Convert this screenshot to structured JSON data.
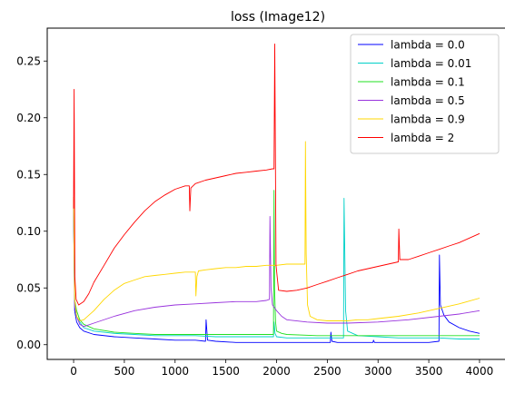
{
  "chart_data": {
    "type": "line",
    "title": "loss (Image12)",
    "xlabel": "",
    "ylabel": "",
    "xlim": [
      -260,
      4260
    ],
    "ylim": [
      -0.013,
      0.279
    ],
    "x_ticks": [
      0,
      500,
      1000,
      1500,
      2000,
      2500,
      3000,
      3500,
      4000
    ],
    "x_tick_labels": [
      "0",
      "500",
      "1000",
      "1500",
      "2000",
      "2500",
      "3000",
      "3500",
      "4000"
    ],
    "y_ticks": [
      0.0,
      0.05,
      0.1,
      0.15,
      0.2,
      0.25
    ],
    "y_tick_labels": [
      "0.00",
      "0.05",
      "0.10",
      "0.15",
      "0.20",
      "0.25"
    ],
    "grid": false,
    "legend_position": "top-right",
    "series": [
      {
        "name": "lambda = 0.0",
        "color": "#0000ff",
        "x": [
          0,
          10,
          30,
          60,
          100,
          200,
          400,
          600,
          800,
          1000,
          1200,
          1300,
          1305,
          1320,
          1400,
          1600,
          1800,
          2000,
          2200,
          2400,
          2530,
          2535,
          2545,
          2600,
          2800,
          2950,
          2955,
          2965,
          3100,
          3300,
          3500,
          3600,
          3605,
          3615,
          3650,
          3700,
          3800,
          3900,
          4000
        ],
        "values": [
          0.12,
          0.03,
          0.02,
          0.015,
          0.012,
          0.009,
          0.007,
          0.006,
          0.005,
          0.004,
          0.004,
          0.003,
          0.022,
          0.004,
          0.003,
          0.002,
          0.002,
          0.002,
          0.002,
          0.002,
          0.002,
          0.011,
          0.003,
          0.002,
          0.002,
          0.002,
          0.004,
          0.002,
          0.002,
          0.002,
          0.002,
          0.003,
          0.079,
          0.035,
          0.026,
          0.02,
          0.015,
          0.012,
          0.01
        ]
      },
      {
        "name": "lambda = 0.01",
        "color": "#00d0c8",
        "x": [
          0,
          10,
          30,
          60,
          100,
          200,
          400,
          600,
          800,
          1000,
          1200,
          1400,
          1600,
          1800,
          1950,
          1970,
          1975,
          1985,
          2000,
          2100,
          2200,
          2400,
          2600,
          2660,
          2665,
          2680,
          2700,
          2800,
          3000,
          3200,
          3400,
          3600,
          3800,
          4000
        ],
        "values": [
          0.12,
          0.035,
          0.025,
          0.02,
          0.015,
          0.012,
          0.01,
          0.009,
          0.008,
          0.008,
          0.008,
          0.007,
          0.007,
          0.007,
          0.007,
          0.007,
          0.02,
          0.01,
          0.007,
          0.006,
          0.006,
          0.006,
          0.006,
          0.006,
          0.129,
          0.03,
          0.012,
          0.008,
          0.007,
          0.006,
          0.006,
          0.006,
          0.005,
          0.005
        ]
      },
      {
        "name": "lambda = 0.1",
        "color": "#22e022",
        "x": [
          0,
          10,
          30,
          60,
          100,
          200,
          400,
          600,
          800,
          1000,
          1200,
          1400,
          1600,
          1800,
          1970,
          1975,
          1980,
          1990,
          2000,
          2050,
          2100,
          2400,
          2800,
          3200,
          3600,
          4000
        ],
        "values": [
          0.13,
          0.04,
          0.03,
          0.022,
          0.018,
          0.014,
          0.011,
          0.01,
          0.009,
          0.009,
          0.009,
          0.009,
          0.009,
          0.009,
          0.009,
          0.136,
          0.05,
          0.02,
          0.012,
          0.01,
          0.009,
          0.008,
          0.008,
          0.008,
          0.008,
          0.008
        ]
      },
      {
        "name": "lambda = 0.5",
        "color": "#9933dd",
        "x": [
          0,
          10,
          30,
          60,
          100,
          200,
          400,
          600,
          800,
          1000,
          1200,
          1400,
          1600,
          1800,
          1900,
          1930,
          1935,
          1945,
          1960,
          2000,
          2050,
          2100,
          2300,
          2500,
          2700,
          3000,
          3300,
          3600,
          3800,
          4000
        ],
        "values": [
          0.12,
          0.035,
          0.025,
          0.018,
          0.016,
          0.019,
          0.025,
          0.03,
          0.033,
          0.035,
          0.036,
          0.037,
          0.038,
          0.038,
          0.039,
          0.04,
          0.113,
          0.05,
          0.035,
          0.03,
          0.025,
          0.022,
          0.02,
          0.019,
          0.019,
          0.02,
          0.022,
          0.025,
          0.027,
          0.03
        ]
      },
      {
        "name": "lambda = 0.9",
        "color": "#ffd700",
        "x": [
          0,
          10,
          30,
          60,
          100,
          200,
          300,
          400,
          500,
          600,
          700,
          800,
          900,
          1000,
          1100,
          1200,
          1205,
          1215,
          1230,
          1300,
          1400,
          1500,
          1600,
          1700,
          1800,
          1900,
          2000,
          2100,
          2200,
          2280,
          2285,
          2292,
          2305,
          2330,
          2400,
          2500,
          2600,
          2700,
          2800,
          2900,
          3000,
          3200,
          3400,
          3600,
          3800,
          4000
        ],
        "values": [
          0.13,
          0.04,
          0.025,
          0.021,
          0.022,
          0.03,
          0.04,
          0.048,
          0.054,
          0.057,
          0.06,
          0.061,
          0.062,
          0.063,
          0.064,
          0.064,
          0.043,
          0.06,
          0.065,
          0.066,
          0.067,
          0.068,
          0.068,
          0.069,
          0.069,
          0.07,
          0.07,
          0.071,
          0.071,
          0.071,
          0.179,
          0.08,
          0.035,
          0.025,
          0.022,
          0.021,
          0.021,
          0.021,
          0.022,
          0.022,
          0.023,
          0.025,
          0.028,
          0.032,
          0.036,
          0.041
        ]
      },
      {
        "name": "lambda = 2",
        "color": "#ff0000",
        "x": [
          0,
          5,
          12,
          25,
          50,
          100,
          150,
          200,
          300,
          400,
          500,
          600,
          700,
          800,
          900,
          1000,
          1100,
          1140,
          1145,
          1155,
          1200,
          1300,
          1400,
          1500,
          1600,
          1700,
          1800,
          1900,
          1960,
          1975,
          1982,
          1995,
          2020,
          2100,
          2200,
          2300,
          2400,
          2500,
          2600,
          2700,
          2800,
          2900,
          3000,
          3100,
          3200,
          3205,
          3215,
          3300,
          3400,
          3500,
          3600,
          3700,
          3800,
          3900,
          4000
        ],
        "values": [
          0.12,
          0.225,
          0.06,
          0.04,
          0.035,
          0.038,
          0.045,
          0.055,
          0.07,
          0.085,
          0.097,
          0.108,
          0.118,
          0.126,
          0.132,
          0.137,
          0.14,
          0.14,
          0.118,
          0.138,
          0.142,
          0.145,
          0.147,
          0.149,
          0.151,
          0.152,
          0.153,
          0.154,
          0.155,
          0.155,
          0.265,
          0.07,
          0.048,
          0.047,
          0.048,
          0.05,
          0.053,
          0.056,
          0.059,
          0.062,
          0.065,
          0.067,
          0.069,
          0.071,
          0.073,
          0.102,
          0.075,
          0.075,
          0.078,
          0.081,
          0.084,
          0.087,
          0.09,
          0.094,
          0.098
        ]
      }
    ]
  }
}
